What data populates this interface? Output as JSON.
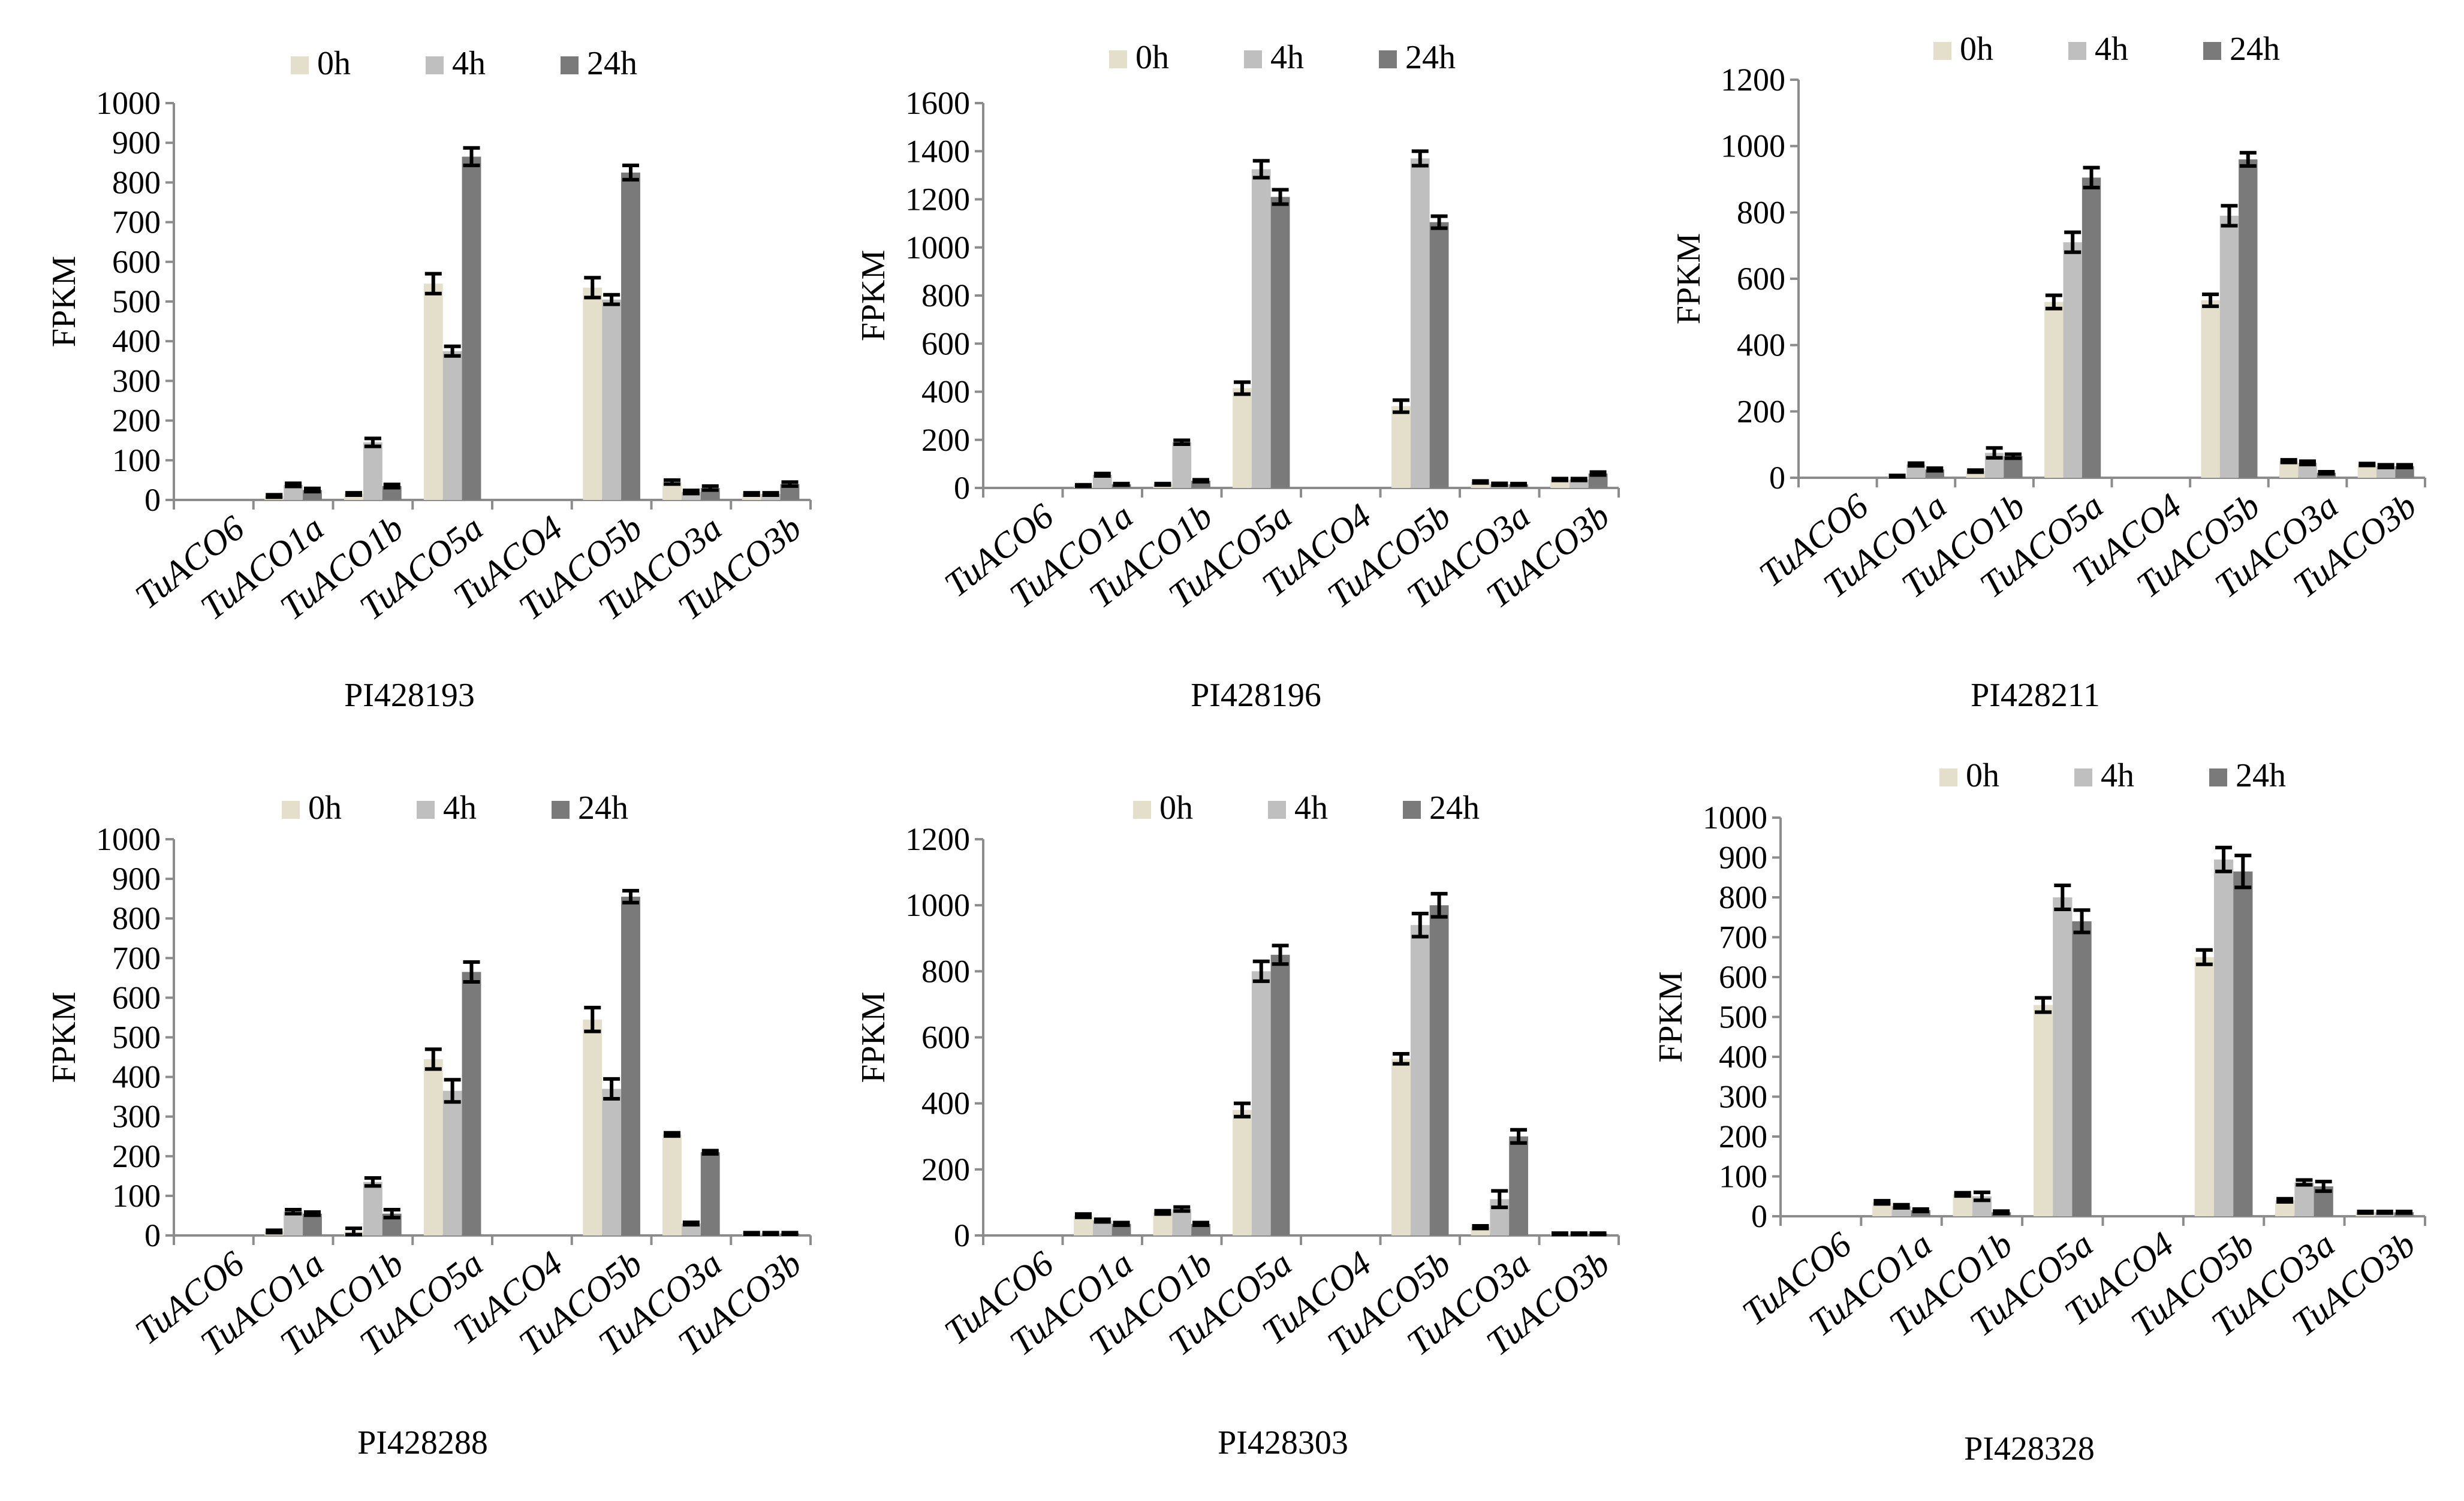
{
  "colors": {
    "h0": "#e4dfca",
    "h4": "#bfbfbf",
    "h24": "#7a7a7a"
  },
  "chart_data": [
    {
      "type": "bar",
      "title": "PI428193",
      "ylabel": "FPKM",
      "ylim": [
        0,
        1000
      ],
      "yticks": [
        0,
        100,
        200,
        300,
        400,
        500,
        600,
        700,
        800,
        900,
        1000
      ],
      "categories": [
        "TuACO6",
        "TuACO1a",
        "TuACO1b",
        "TuACO5a",
        "TuACO4",
        "TuACO5b",
        "TuACO3a",
        "TuACO3b"
      ],
      "series": [
        {
          "name": "0h",
          "values": [
            0,
            10,
            15,
            545,
            0,
            535,
            45,
            15
          ],
          "errors": [
            0,
            3,
            3,
            25,
            0,
            25,
            5,
            3
          ]
        },
        {
          "name": "4h",
          "values": [
            0,
            38,
            145,
            375,
            0,
            505,
            20,
            15
          ],
          "errors": [
            0,
            4,
            10,
            12,
            0,
            12,
            4,
            3
          ]
        },
        {
          "name": "24h",
          "values": [
            0,
            25,
            35,
            865,
            0,
            825,
            30,
            40
          ],
          "errors": [
            0,
            4,
            4,
            22,
            0,
            18,
            5,
            5
          ]
        }
      ]
    },
    {
      "type": "bar",
      "title": "PI428196",
      "ylabel": "FPKM",
      "ylim": [
        0,
        1600
      ],
      "yticks": [
        0,
        200,
        400,
        600,
        800,
        1000,
        1200,
        1400,
        1600
      ],
      "categories": [
        "TuACO6",
        "TuACO1a",
        "TuACO1b",
        "TuACO5a",
        "TuACO4",
        "TuACO5b",
        "TuACO3a",
        "TuACO3b"
      ],
      "series": [
        {
          "name": "0h",
          "values": [
            0,
            10,
            15,
            415,
            0,
            340,
            25,
            35
          ],
          "errors": [
            0,
            3,
            3,
            25,
            0,
            25,
            4,
            4
          ]
        },
        {
          "name": "4h",
          "values": [
            0,
            55,
            190,
            1325,
            0,
            1370,
            15,
            35
          ],
          "errors": [
            0,
            5,
            8,
            35,
            0,
            30,
            4,
            4
          ]
        },
        {
          "name": "24h",
          "values": [
            0,
            15,
            30,
            1210,
            0,
            1105,
            15,
            60
          ],
          "errors": [
            0,
            3,
            4,
            30,
            0,
            25,
            3,
            6
          ]
        }
      ]
    },
    {
      "type": "bar",
      "title": "PI428211",
      "ylabel": "FPKM",
      "ylim": [
        0,
        1200
      ],
      "yticks": [
        0,
        200,
        400,
        600,
        800,
        1000,
        1200
      ],
      "categories": [
        "TuACO6",
        "TuACO1a",
        "TuACO1b",
        "TuACO5a",
        "TuACO4",
        "TuACO5b",
        "TuACO3a",
        "TuACO3b"
      ],
      "series": [
        {
          "name": "0h",
          "values": [
            0,
            5,
            20,
            530,
            0,
            535,
            50,
            40
          ],
          "errors": [
            0,
            2,
            3,
            20,
            0,
            18,
            4,
            3
          ]
        },
        {
          "name": "4h",
          "values": [
            0,
            40,
            75,
            710,
            0,
            790,
            45,
            35
          ],
          "errors": [
            0,
            4,
            15,
            30,
            0,
            30,
            5,
            4
          ]
        },
        {
          "name": "24h",
          "values": [
            0,
            25,
            65,
            905,
            0,
            960,
            15,
            35
          ],
          "errors": [
            0,
            4,
            6,
            30,
            0,
            20,
            3,
            4
          ]
        }
      ]
    },
    {
      "type": "bar",
      "title": "PI428288",
      "ylabel": "FPKM",
      "ylim": [
        0,
        1000
      ],
      "yticks": [
        0,
        100,
        200,
        300,
        400,
        500,
        600,
        700,
        800,
        900,
        1000
      ],
      "categories": [
        "TuACO6",
        "TuACO1a",
        "TuACO1b",
        "TuACO5a",
        "TuACO4",
        "TuACO5b",
        "TuACO3a",
        "TuACO3b"
      ],
      "series": [
        {
          "name": "0h",
          "values": [
            0,
            10,
            10,
            445,
            0,
            545,
            255,
            5
          ],
          "errors": [
            0,
            3,
            8,
            25,
            0,
            30,
            4,
            2
          ]
        },
        {
          "name": "4h",
          "values": [
            0,
            60,
            135,
            365,
            0,
            370,
            30,
            5
          ],
          "errors": [
            0,
            5,
            10,
            28,
            0,
            25,
            3,
            2
          ]
        },
        {
          "name": "24h",
          "values": [
            0,
            55,
            55,
            665,
            0,
            855,
            210,
            5
          ],
          "errors": [
            0,
            4,
            10,
            25,
            0,
            15,
            4,
            2
          ]
        }
      ]
    },
    {
      "type": "bar",
      "title": "PI428303",
      "ylabel": "FPKM",
      "ylim": [
        0,
        1200
      ],
      "yticks": [
        0,
        200,
        400,
        600,
        800,
        1000,
        1200
      ],
      "categories": [
        "TuACO6",
        "TuACO1a",
        "TuACO1b",
        "TuACO5a",
        "TuACO4",
        "TuACO5b",
        "TuACO3a",
        "TuACO3b"
      ],
      "series": [
        {
          "name": "0h",
          "values": [
            0,
            60,
            70,
            380,
            0,
            535,
            25,
            5
          ],
          "errors": [
            0,
            5,
            5,
            20,
            0,
            15,
            4,
            2
          ]
        },
        {
          "name": "4h",
          "values": [
            0,
            45,
            80,
            800,
            0,
            940,
            110,
            5
          ],
          "errors": [
            0,
            4,
            6,
            30,
            0,
            35,
            25,
            2
          ]
        },
        {
          "name": "24h",
          "values": [
            0,
            35,
            35,
            850,
            0,
            1000,
            300,
            5
          ],
          "errors": [
            0,
            4,
            4,
            28,
            0,
            35,
            20,
            2
          ]
        }
      ]
    },
    {
      "type": "bar",
      "title": "PI428328",
      "ylabel": "FPKM",
      "ylim": [
        0,
        1000
      ],
      "yticks": [
        0,
        100,
        200,
        300,
        400,
        500,
        600,
        700,
        800,
        900,
        1000
      ],
      "categories": [
        "TuACO6",
        "TuACO1a",
        "TuACO1b",
        "TuACO5a",
        "TuACO4",
        "TuACO5b",
        "TuACO3a",
        "TuACO3b"
      ],
      "series": [
        {
          "name": "0h",
          "values": [
            0,
            35,
            55,
            530,
            0,
            650,
            40,
            10
          ],
          "errors": [
            0,
            4,
            4,
            18,
            0,
            18,
            4,
            2
          ]
        },
        {
          "name": "4h",
          "values": [
            0,
            25,
            50,
            800,
            0,
            895,
            85,
            10
          ],
          "errors": [
            0,
            4,
            10,
            30,
            0,
            30,
            6,
            2
          ]
        },
        {
          "name": "24h",
          "values": [
            0,
            15,
            10,
            740,
            0,
            865,
            75,
            10
          ],
          "errors": [
            0,
            3,
            3,
            28,
            0,
            40,
            12,
            2
          ]
        }
      ]
    }
  ]
}
